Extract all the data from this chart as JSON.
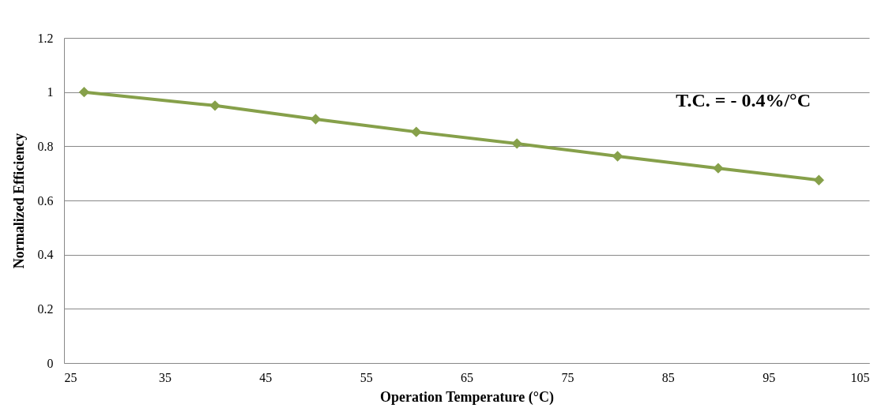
{
  "chart_data": {
    "type": "line",
    "xlabel": "Operation Temperature (°C)",
    "ylabel": "Normalized Efficiency",
    "x": [
      27,
      40,
      50,
      60,
      70,
      80,
      90,
      100
    ],
    "series": [
      {
        "color": "#86a04a",
        "values": [
          1.0,
          0.95,
          0.9,
          0.853,
          0.81,
          0.763,
          0.719,
          0.675
        ],
        "marker": "diamond"
      }
    ],
    "xlim": [
      25,
      105
    ],
    "xticks": [
      25,
      35,
      45,
      55,
      65,
      75,
      85,
      95,
      105
    ],
    "ylim": [
      0,
      1.2
    ],
    "yticks": [
      0,
      0.2,
      0.4,
      0.6,
      0.8,
      1,
      1.2
    ],
    "grid": "y",
    "line_style": "solid",
    "annotations": [
      "T.C. = - 0.4%/°C"
    ]
  }
}
